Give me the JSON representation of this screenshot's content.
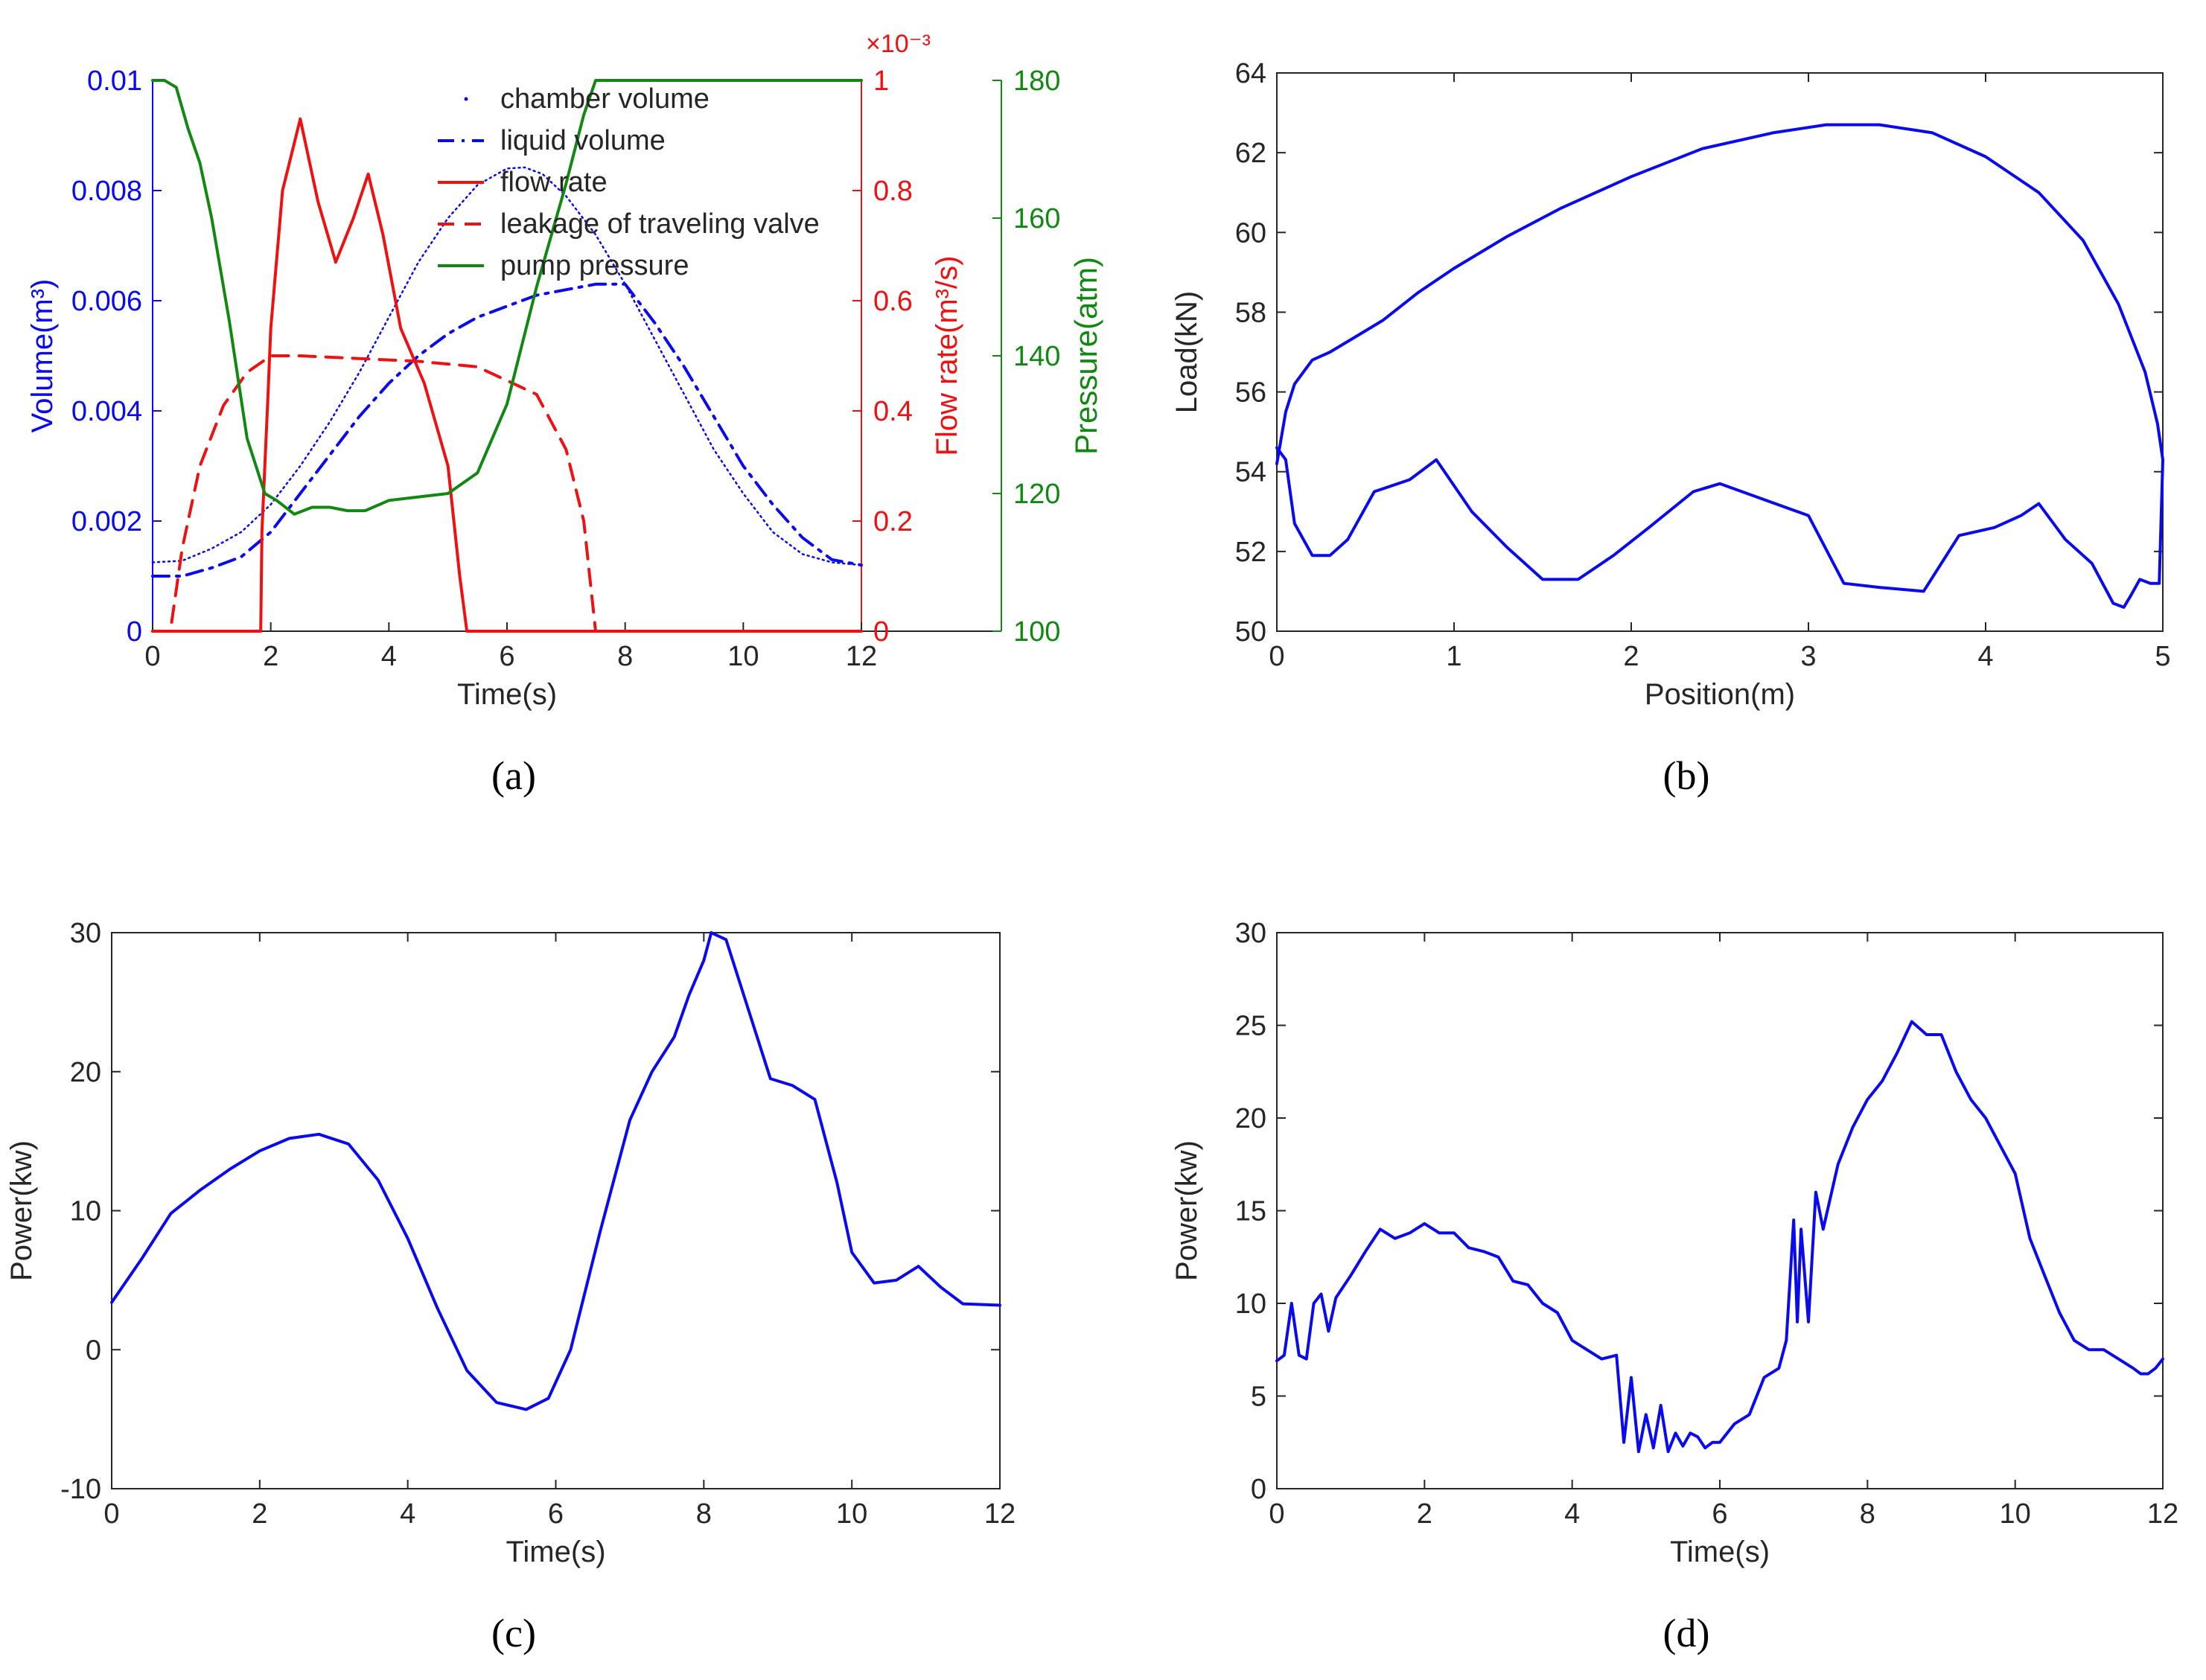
{
  "colors": {
    "blue": "#0a0aee",
    "red": "#ee1111",
    "green": "#118811",
    "axis": "#262626",
    "text": "#262626"
  },
  "chart_data": [
    {
      "id": "a",
      "type": "line",
      "caption": "(a)",
      "xlabel": "Time(s)",
      "xlim": [
        0,
        12
      ],
      "xticks": [
        0,
        2,
        4,
        6,
        8,
        10,
        12
      ],
      "xtick_labels": [
        "0",
        "2",
        "4",
        "6",
        "8",
        "10",
        "12"
      ],
      "axes": {
        "left": {
          "label": "Volume(m³)",
          "lim": [
            0,
            0.01
          ],
          "ticks": [
            0,
            0.002,
            0.004,
            0.006,
            0.008,
            0.01
          ],
          "tick_labels": [
            "0",
            "0.002",
            "0.004",
            "0.006",
            "0.008",
            "0.01"
          ],
          "color": "#0a0aee"
        },
        "right_inner": {
          "label": "Flow rate(m³/s)",
          "lim": [
            0,
            1
          ],
          "ticks": [
            0,
            0.2,
            0.4,
            0.6,
            0.8,
            1
          ],
          "tick_labels": [
            "0",
            "0.2",
            "0.4",
            "0.6",
            "0.8",
            "1"
          ],
          "exponent": "×10⁻³",
          "color": "#ee1111"
        },
        "right_outer": {
          "label": "Pressure(atm)",
          "lim": [
            100,
            180
          ],
          "ticks": [
            100,
            120,
            140,
            160,
            180
          ],
          "tick_labels": [
            "100",
            "120",
            "140",
            "160",
            "180"
          ],
          "color": "#118811"
        }
      },
      "series": [
        {
          "name": "chamber volume",
          "axis": "left",
          "style": "dotted",
          "color": "#0a0aee",
          "x": [
            0,
            0.5,
            1,
            1.5,
            2,
            2.5,
            3,
            3.5,
            4,
            4.5,
            5,
            5.5,
            6,
            6.3,
            6.6,
            7,
            7.5,
            8,
            8.5,
            9,
            9.5,
            10,
            10.5,
            11,
            11.5,
            12
          ],
          "y": [
            0.00125,
            0.00128,
            0.0015,
            0.0018,
            0.0023,
            0.003,
            0.0038,
            0.0047,
            0.0057,
            0.0067,
            0.0075,
            0.0081,
            0.0084,
            0.00842,
            0.0083,
            0.0079,
            0.0072,
            0.0063,
            0.0053,
            0.0043,
            0.0033,
            0.0025,
            0.0018,
            0.0014,
            0.00125,
            0.0012
          ]
        },
        {
          "name": "liquid volume",
          "axis": "left",
          "style": "dashdot",
          "color": "#0a0aee",
          "x": [
            0,
            0.5,
            1,
            1.5,
            2,
            2.5,
            3,
            3.5,
            4,
            4.5,
            5,
            5.5,
            6,
            6.5,
            7,
            7.5,
            8,
            8.5,
            9,
            9.5,
            10,
            10.5,
            11,
            11.5,
            12
          ],
          "y": [
            0.001,
            0.001,
            0.00115,
            0.00135,
            0.0018,
            0.0025,
            0.0032,
            0.0039,
            0.0045,
            0.005,
            0.0054,
            0.0057,
            0.0059,
            0.0061,
            0.0062,
            0.0063,
            0.0063,
            0.0056,
            0.0048,
            0.0039,
            0.003,
            0.0023,
            0.0017,
            0.0013,
            0.0012
          ]
        },
        {
          "name": "flow rate",
          "axis": "right_inner",
          "style": "solid",
          "color": "#ee1111",
          "x": [
            0,
            1.83,
            1.85,
            1.9,
            1.95,
            2.0,
            2.2,
            2.5,
            2.8,
            3.1,
            3.4,
            3.65,
            3.9,
            4.2,
            4.6,
            5.0,
            5.2,
            5.32,
            6,
            8,
            10,
            12
          ],
          "y": [
            0,
            0,
            0.18,
            0.3,
            0.42,
            0.55,
            0.8,
            0.93,
            0.78,
            0.67,
            0.75,
            0.83,
            0.72,
            0.55,
            0.45,
            0.3,
            0.1,
            0,
            0,
            0,
            0,
            0
          ]
        },
        {
          "name": "leakage of traveling valve",
          "axis": "right_inner",
          "style": "dashed",
          "color": "#ee1111",
          "x": [
            0,
            0.3,
            0.5,
            0.8,
            1.2,
            1.6,
            2.0,
            2.5,
            3.5,
            4.5,
            5.5,
            6.5,
            7.0,
            7.3,
            7.45,
            7.5,
            8,
            10,
            12
          ],
          "y": [
            0,
            0,
            0.15,
            0.3,
            0.41,
            0.47,
            0.5,
            0.5,
            0.495,
            0.49,
            0.48,
            0.43,
            0.33,
            0.2,
            0.05,
            0,
            0,
            0,
            0
          ]
        },
        {
          "name": "pump pressure",
          "axis": "right_outer",
          "style": "solid",
          "color": "#118811",
          "x": [
            0,
            0.2,
            0.4,
            0.6,
            0.8,
            1.0,
            1.3,
            1.6,
            1.9,
            2.1,
            2.4,
            2.7,
            3.0,
            3.3,
            3.6,
            4.0,
            4.5,
            5.0,
            5.5,
            6.0,
            6.5,
            7.0,
            7.3,
            7.5,
            8,
            10,
            12
          ],
          "y": [
            180,
            180,
            179,
            173,
            168,
            160,
            145,
            128,
            120,
            119,
            117,
            118,
            118,
            117.5,
            117.5,
            119,
            119.5,
            120,
            123,
            133,
            150,
            165,
            175,
            180,
            180,
            180,
            180
          ]
        }
      ],
      "legend": {
        "position": "top-center",
        "entries": [
          "chamber volume",
          "liquid volume",
          "flow rate",
          "leakage of traveling valve",
          "pump pressure"
        ]
      }
    },
    {
      "id": "b",
      "type": "line",
      "caption": "(b)",
      "xlabel": "Position(m)",
      "ylabel": "Load(kN)",
      "xlim": [
        0,
        5
      ],
      "ylim": [
        50,
        64
      ],
      "xticks": [
        0,
        1,
        2,
        3,
        4,
        5
      ],
      "xtick_labels": [
        "0",
        "1",
        "2",
        "3",
        "4",
        "5"
      ],
      "yticks": [
        50,
        52,
        54,
        56,
        58,
        60,
        62,
        64
      ],
      "ytick_labels": [
        "50",
        "52",
        "54",
        "56",
        "58",
        "60",
        "62",
        "64"
      ],
      "series": [
        {
          "name": "load",
          "style": "solid",
          "color": "#0a0aee",
          "x": [
            0,
            0.05,
            0.1,
            0.2,
            0.3,
            0.45,
            0.6,
            0.8,
            1.0,
            1.3,
            1.6,
            2.0,
            2.4,
            2.8,
            3.1,
            3.4,
            3.7,
            4.0,
            4.3,
            4.55,
            4.75,
            4.9,
            4.97,
            5.0,
            4.98,
            4.93,
            4.87,
            4.82,
            4.78,
            4.72,
            4.6,
            4.45,
            4.3,
            4.2,
            4.05,
            3.85,
            3.65,
            3.4,
            3.2,
            3.0,
            2.75,
            2.5,
            2.35,
            2.1,
            1.9,
            1.7,
            1.5,
            1.3,
            1.1,
            0.9,
            0.75,
            0.55,
            0.4,
            0.3,
            0.2,
            0.1,
            0.05,
            0
          ],
          "y": [
            54.2,
            55.5,
            56.2,
            56.8,
            57.0,
            57.4,
            57.8,
            58.5,
            59.1,
            59.9,
            60.6,
            61.4,
            62.1,
            62.5,
            62.7,
            62.7,
            62.5,
            61.9,
            61.0,
            59.8,
            58.2,
            56.5,
            55.2,
            54.3,
            51.2,
            51.2,
            51.3,
            50.9,
            50.6,
            50.7,
            51.7,
            52.3,
            53.2,
            52.9,
            52.6,
            52.4,
            51.0,
            51.1,
            51.2,
            52.9,
            53.3,
            53.7,
            53.5,
            52.6,
            51.9,
            51.3,
            51.3,
            52.1,
            53.0,
            54.3,
            53.8,
            53.5,
            52.3,
            51.9,
            51.9,
            52.7,
            54.3,
            54.6
          ]
        }
      ]
    },
    {
      "id": "c",
      "type": "line",
      "caption": "(c)",
      "xlabel": "Time(s)",
      "ylabel": "Power(kw)",
      "xlim": [
        0,
        12
      ],
      "ylim": [
        -10,
        30
      ],
      "xticks": [
        0,
        2,
        4,
        6,
        8,
        10,
        12
      ],
      "xtick_labels": [
        "0",
        "2",
        "4",
        "6",
        "8",
        "10",
        "12"
      ],
      "yticks": [
        -10,
        0,
        10,
        20,
        30
      ],
      "ytick_labels": [
        "-10",
        "0",
        "10",
        "20",
        "30"
      ],
      "series": [
        {
          "name": "power",
          "style": "solid",
          "color": "#0a0aee",
          "x": [
            0,
            0.4,
            0.8,
            1.2,
            1.6,
            2.0,
            2.4,
            2.8,
            3.2,
            3.6,
            4.0,
            4.4,
            4.8,
            5.2,
            5.6,
            5.9,
            6.2,
            6.6,
            7.0,
            7.3,
            7.6,
            7.8,
            8.0,
            8.1,
            8.3,
            8.6,
            8.9,
            9.2,
            9.5,
            9.8,
            10.0,
            10.3,
            10.6,
            10.9,
            11.2,
            11.5,
            12
          ],
          "y": [
            3.4,
            6.5,
            9.8,
            11.5,
            13.0,
            14.3,
            15.2,
            15.5,
            14.8,
            12.2,
            8.0,
            3.0,
            -1.5,
            -3.8,
            -4.3,
            -3.5,
            0,
            8.5,
            16.5,
            20.0,
            22.5,
            25.5,
            28.0,
            30.0,
            29.5,
            24.5,
            19.5,
            19.0,
            18.0,
            12.0,
            7.0,
            4.8,
            5.0,
            6.0,
            4.5,
            3.3,
            3.2
          ]
        }
      ]
    },
    {
      "id": "d",
      "type": "line",
      "caption": "(d)",
      "xlabel": "Time(s)",
      "ylabel": "Power(kw)",
      "xlim": [
        0,
        12
      ],
      "ylim": [
        0,
        30
      ],
      "xticks": [
        0,
        2,
        4,
        6,
        8,
        10,
        12
      ],
      "xtick_labels": [
        "0",
        "2",
        "4",
        "6",
        "8",
        "10",
        "12"
      ],
      "yticks": [
        0,
        5,
        10,
        15,
        20,
        25,
        30
      ],
      "ytick_labels": [
        "0",
        "5",
        "10",
        "15",
        "20",
        "25",
        "30"
      ],
      "series": [
        {
          "name": "power",
          "style": "solid",
          "color": "#0a0aee",
          "x": [
            0,
            0.1,
            0.2,
            0.3,
            0.4,
            0.5,
            0.6,
            0.7,
            0.8,
            1.0,
            1.2,
            1.4,
            1.6,
            1.8,
            2.0,
            2.2,
            2.4,
            2.6,
            2.8,
            3.0,
            3.2,
            3.4,
            3.6,
            3.8,
            4.0,
            4.2,
            4.4,
            4.6,
            4.7,
            4.8,
            4.9,
            5.0,
            5.1,
            5.2,
            5.3,
            5.4,
            5.5,
            5.6,
            5.7,
            5.8,
            5.9,
            6.0,
            6.2,
            6.4,
            6.6,
            6.8,
            6.9,
            7.0,
            7.05,
            7.1,
            7.2,
            7.3,
            7.4,
            7.6,
            7.8,
            8.0,
            8.2,
            8.4,
            8.6,
            8.8,
            9.0,
            9.2,
            9.4,
            9.6,
            9.8,
            10.0,
            10.2,
            10.4,
            10.6,
            10.8,
            11.0,
            11.2,
            11.4,
            11.6,
            11.7,
            11.8,
            11.9,
            12.0
          ],
          "y": [
            6.9,
            7.2,
            10.0,
            7.2,
            7.0,
            10.0,
            10.5,
            8.5,
            10.3,
            11.5,
            12.8,
            14.0,
            13.5,
            13.8,
            14.3,
            13.8,
            13.8,
            13.0,
            12.8,
            12.5,
            11.2,
            11.0,
            10.0,
            9.5,
            8.0,
            7.5,
            7.0,
            7.2,
            2.5,
            6.0,
            2.0,
            4.0,
            2.2,
            4.5,
            2.0,
            3.0,
            2.3,
            3.0,
            2.8,
            2.2,
            2.5,
            2.5,
            3.5,
            4.0,
            6.0,
            6.5,
            8.0,
            14.5,
            9.0,
            14.0,
            9.0,
            16.0,
            14.0,
            17.5,
            19.5,
            21.0,
            22.0,
            23.5,
            25.2,
            24.5,
            24.5,
            22.5,
            21.0,
            20.0,
            18.5,
            17.0,
            13.5,
            11.5,
            9.5,
            8.0,
            7.5,
            7.5,
            7.0,
            6.5,
            6.2,
            6.2,
            6.5,
            7.0
          ]
        }
      ]
    }
  ]
}
